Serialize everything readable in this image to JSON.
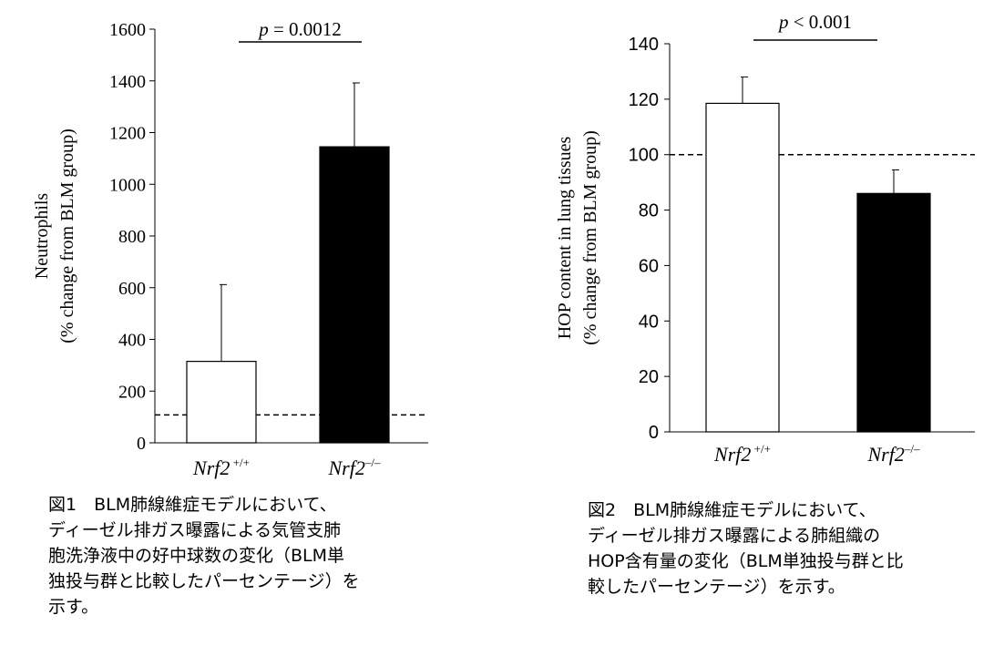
{
  "chart_data": [
    {
      "type": "bar",
      "categories": [
        "Nrf2 +/+",
        "Nrf2–/–"
      ],
      "category_labels": [
        {
          "name": "Nrf2",
          "sup": " +/+"
        },
        {
          "name": "Nrf2",
          "sup": "–/–"
        }
      ],
      "values": [
        315,
        1145
      ],
      "error_upper": [
        612,
        1392
      ],
      "bar_colors": [
        "#ffffff",
        "#000000"
      ],
      "ylabel_lines": [
        "Neutrophils",
        "(% change  from BLM group)"
      ],
      "ylim": [
        0,
        1600
      ],
      "yticks": [
        0,
        200,
        400,
        600,
        800,
        1000,
        1200,
        1400,
        1600
      ],
      "reference_line": 108,
      "significance": {
        "p": "p",
        "text": " = 0.0012"
      },
      "grid": false,
      "legend": "none"
    },
    {
      "type": "bar",
      "categories": [
        "Nrf2 +/+",
        "Nrf2–/–"
      ],
      "category_labels": [
        {
          "name": "Nrf2",
          "sup": " +/+"
        },
        {
          "name": "Nrf2",
          "sup": "–/–"
        }
      ],
      "values": [
        118.5,
        86
      ],
      "error_upper": [
        128,
        94.5
      ],
      "bar_colors": [
        "#ffffff",
        "#000000"
      ],
      "ylabel_lines": [
        "HOP content  in lung tissues",
        "(% change from BLM group)"
      ],
      "ylim": [
        0,
        140
      ],
      "yticks": [
        0,
        20,
        40,
        60,
        80,
        100,
        120,
        140
      ],
      "reference_line": 100,
      "significance": {
        "p": "p",
        "text": " < 0.001"
      },
      "grid": false,
      "legend": "none"
    }
  ],
  "captions": [
    {
      "lines": [
        "図1　BLM肺線維症モデルにおいて、",
        "ディーゼル排ガス曝露による気管支肺",
        "胞洗浄液中の好中球数の変化（BLM単",
        "独投与群と比較したパーセンテージ）を",
        "示す。"
      ]
    },
    {
      "lines": [
        "図2　BLM肺線維症モデルにおいて、",
        "ディーゼル排ガス曝露による肺組織の",
        "HOP含有量の変化（BLM単独投与群と比",
        "較したパーセンテージ）を示す。"
      ]
    }
  ]
}
